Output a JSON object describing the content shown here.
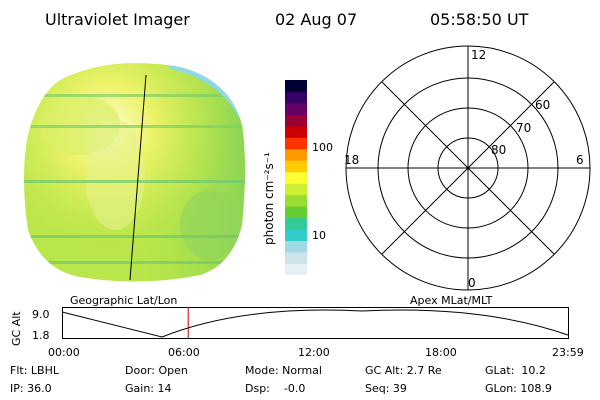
{
  "header": {
    "instrument": "Ultraviolet Imager",
    "date": "02 Aug 07",
    "time": "05:58:50 UT"
  },
  "colorbar": {
    "unit_label": "photon cm⁻²s⁻¹",
    "tick_100": "100",
    "tick_10": "10",
    "colors": [
      "#e6f0f4",
      "#cfe2ea",
      "#9fd9e3",
      "#33cccc",
      "#33cc99",
      "#66cc33",
      "#99dd33",
      "#ccee33",
      "#ffff33",
      "#ffcc00",
      "#ff9900",
      "#ff3300",
      "#cc0000",
      "#990033",
      "#660066",
      "#330066",
      "#000033"
    ]
  },
  "polar_plot": {
    "label_12": "12",
    "label_18": "18",
    "label_6": "6",
    "label_0": "0",
    "label_60": "60",
    "label_70": "70",
    "label_80": "80"
  },
  "timeline": {
    "axis_title": "GC Alt",
    "left_caption": "Geographic Lat/Lon",
    "right_caption": "Apex MLat/MLT",
    "y_top": "9.0",
    "y_bottom": "1.8",
    "x_ticks": [
      "00:00",
      "06:00",
      "12:00",
      "18:00",
      "23:59"
    ],
    "marker_time": "05:58:50"
  },
  "info": {
    "flt": "Flt: LBHL",
    "ip": "IP: 36.0",
    "door": "Door: Open",
    "gain": "Gain: 14",
    "mode": "Mode: Normal",
    "dsp": "Dsp:    -0.0",
    "gcalt": "GC Alt: 2.7 Re",
    "seq": "Seq: 39",
    "glat": "GLat:  10.2",
    "glon": "GLon: 108.9"
  },
  "colors": {
    "marker": "#cc0000",
    "disk_base": "#b9e64a"
  }
}
